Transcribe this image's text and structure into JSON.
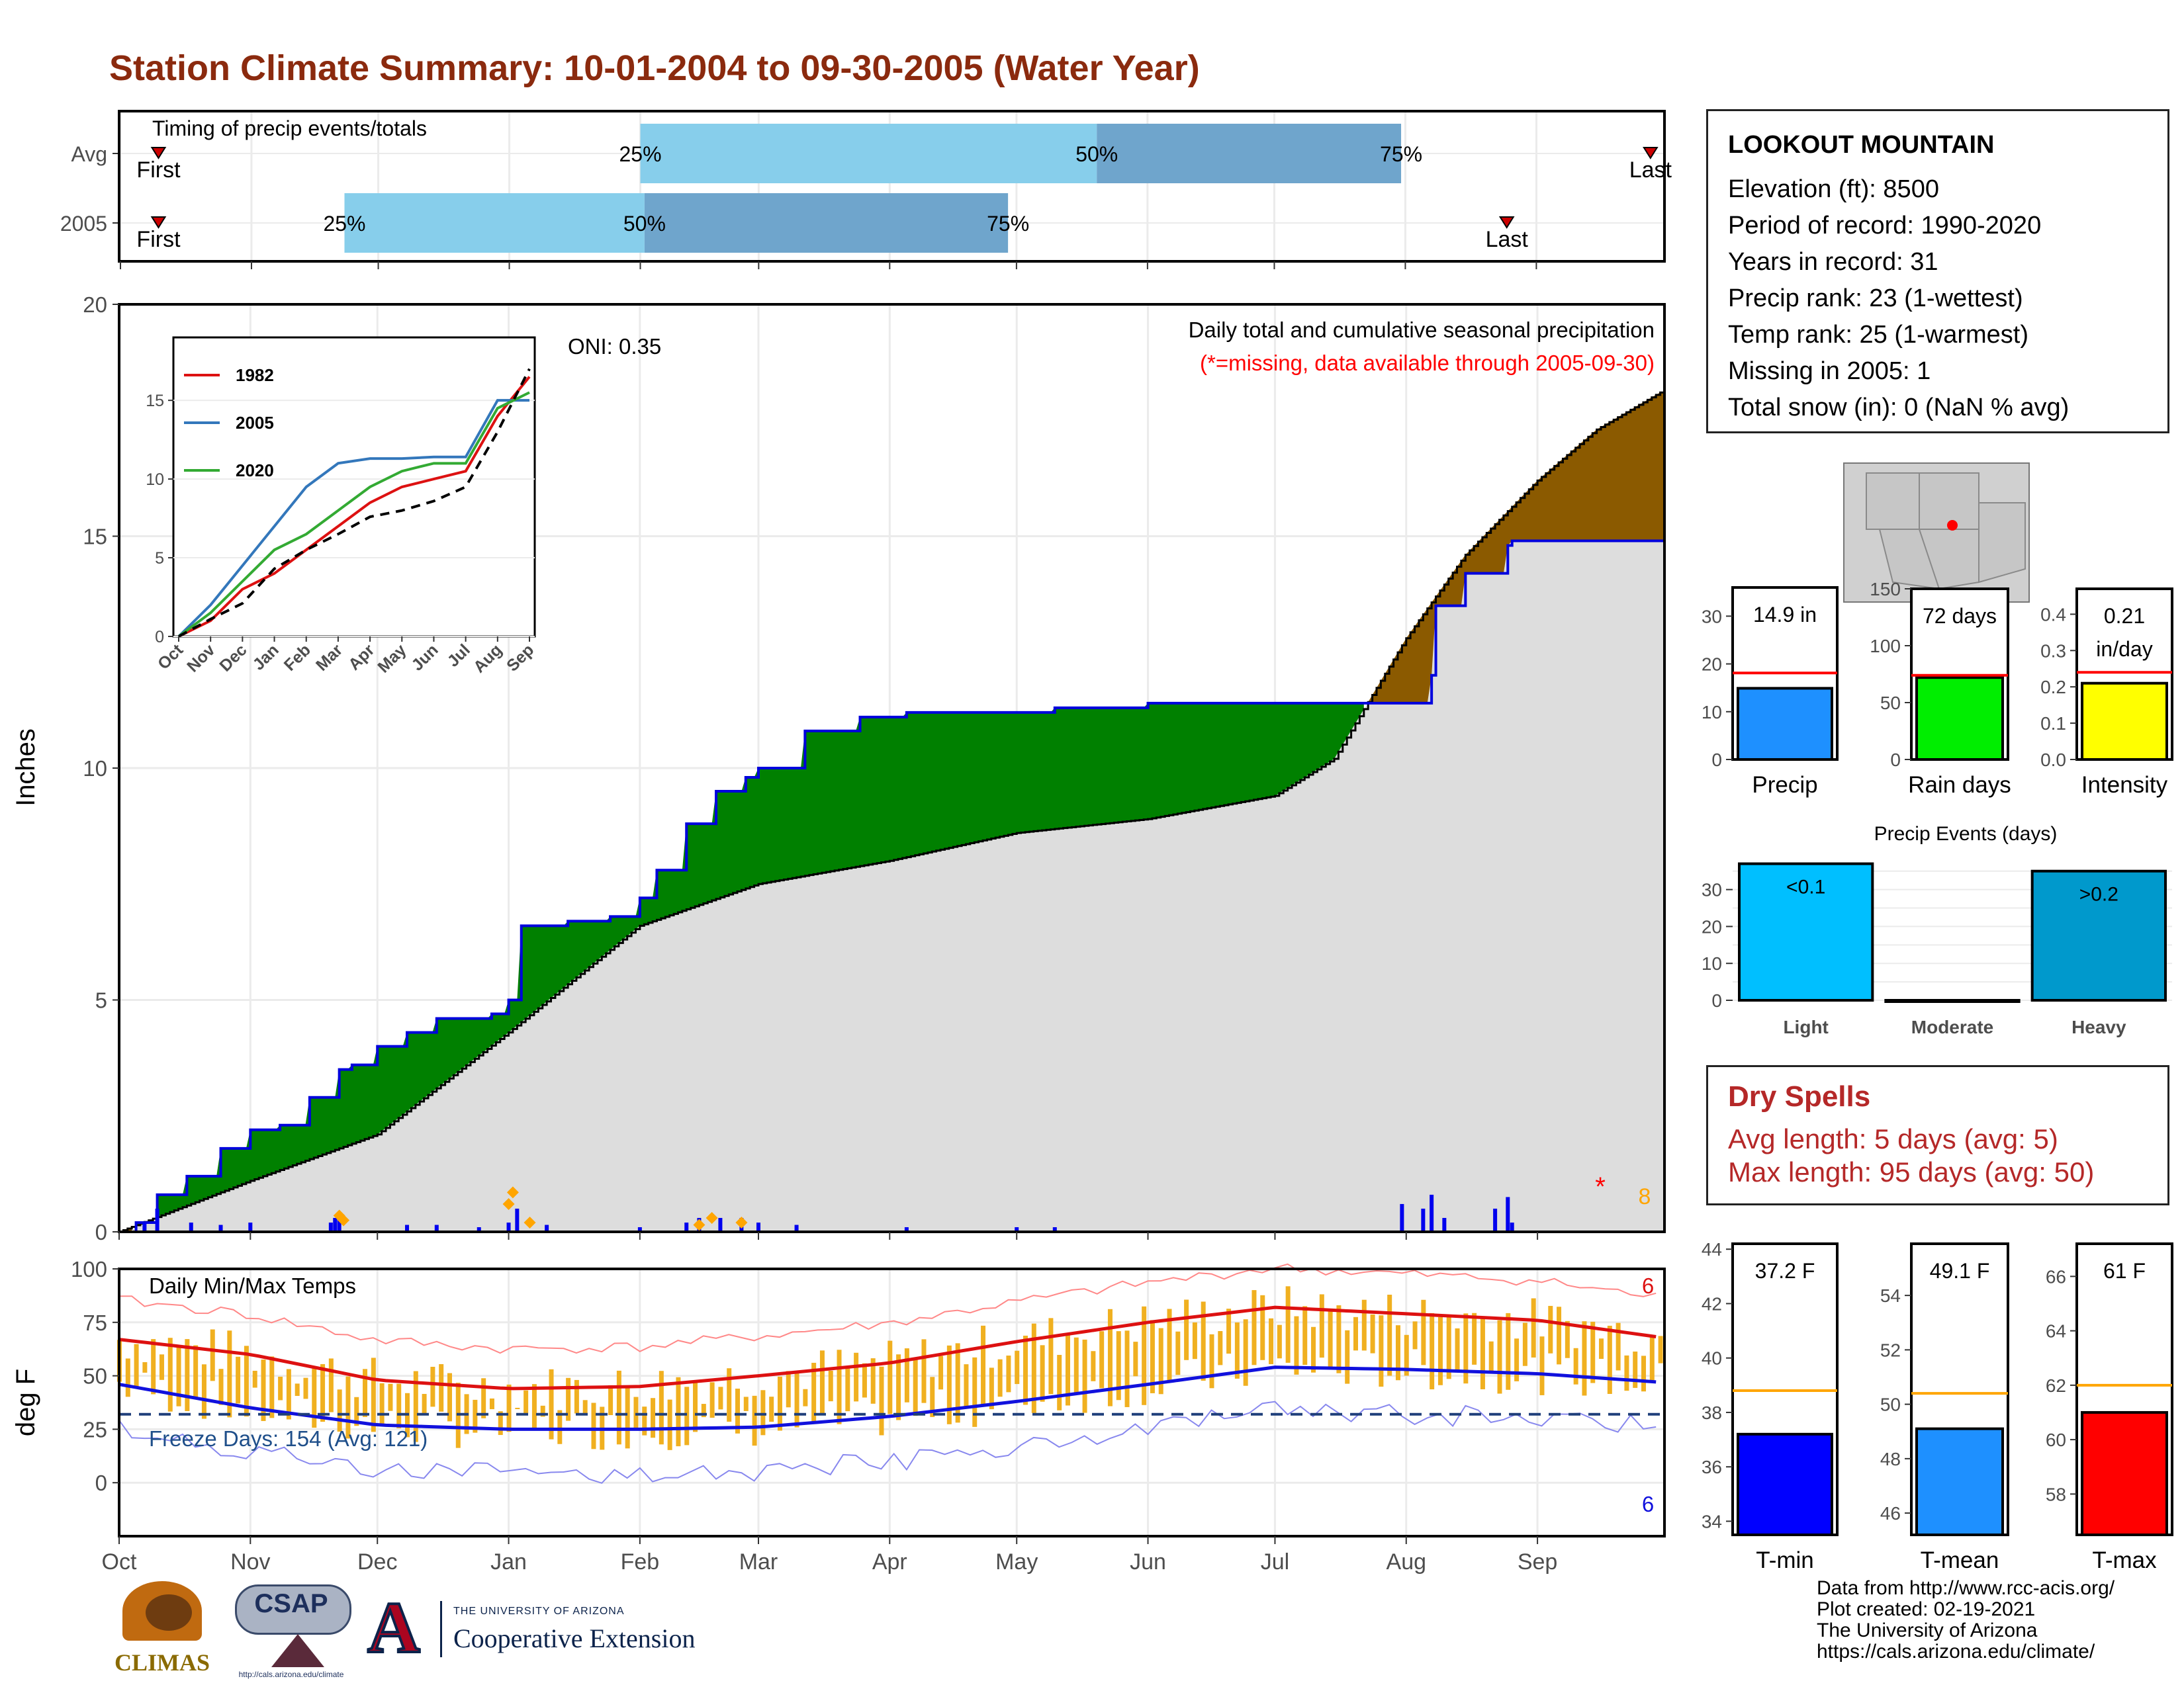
{
  "title": "Station Climate Summary: 10-01-2004 to 09-30-2005 (Water Year)",
  "station": {
    "name": "LOOKOUT MOUNTAIN",
    "lines": [
      "Elevation (ft): 8500",
      "Period of record: 1990-2020",
      "Years in record: 31",
      "Precip rank: 23 (1-wettest)",
      "Temp rank: 25 (1-warmest)",
      "Missing in 2005: 1",
      "Total snow (in): 0 (NaN % avg)"
    ]
  },
  "dry_spells": {
    "title": "Dry Spells",
    "avg_length": "Avg length: 5 days (avg: 5)",
    "max_length": "Max length: 95 days (avg: 50)"
  },
  "credits": [
    "Data from http://www.rcc-acis.org/",
    "Plot created: 02-19-2021",
    "The University of Arizona",
    "https://cals.arizona.edu/climate/"
  ],
  "logos": {
    "climas": "CLIMAS",
    "csap": "CSAP",
    "csap_url": "http://cals.arizona.edu/climate",
    "ua_small": "THE UNIVERSITY OF ARIZONA",
    "ua_big": "Cooperative Extension"
  },
  "chart_data": [
    {
      "type": "timeline",
      "title": "Timing of precip events/totals",
      "rows": [
        {
          "name": "Avg",
          "first": "2004-10-10",
          "q25": "2005-02-01",
          "q50": "2005-05-20",
          "q75": "2005-07-31",
          "last": "2005-09-28"
        },
        {
          "name": "2005",
          "first": "2004-10-10",
          "q25": "2004-11-23",
          "q50": "2005-02-02",
          "q75": "2005-04-29",
          "last": "2005-08-25"
        }
      ],
      "labels": {
        "first": "First",
        "last": "Last",
        "q25": "25%",
        "q50": "50%",
        "q75": "75%"
      },
      "colors": {
        "q25_q50": "#87ceeb",
        "q50_q75": "#6fa5cc",
        "marker": "#cc0000"
      }
    },
    {
      "type": "area",
      "title": "Daily total and cumulative seasonal precipitation",
      "subtitle": "(*=missing, data available through 2005-09-30)",
      "annotation": "ONI: 0.35",
      "ylabel": "Inches",
      "ylim": [
        0,
        20
      ],
      "yticks": [
        0,
        5,
        10,
        15,
        20
      ],
      "x_months": [
        "Oct",
        "Nov",
        "Dec",
        "Jan",
        "Feb",
        "Mar",
        "Apr",
        "May",
        "Jun",
        "Jul",
        "Aug",
        "Sep"
      ],
      "missing_count": "8",
      "colors": {
        "surplus": "#008000",
        "deficit": "#8b5a00",
        "normal": "#dddddd",
        "line": "#0000dd",
        "bars": "#0000ee",
        "snow": "#ffa500"
      },
      "cumulative_2005": {
        "x": [
          "2004-10-01",
          "2004-10-05",
          "2004-10-10",
          "2004-10-17",
          "2004-10-25",
          "2004-11-01",
          "2004-11-08",
          "2004-11-15",
          "2004-11-22",
          "2004-11-25",
          "2004-12-01",
          "2004-12-08",
          "2004-12-15",
          "2004-12-28",
          "2005-01-01",
          "2005-01-04",
          "2005-01-15",
          "2005-01-25",
          "2005-02-01",
          "2005-02-05",
          "2005-02-12",
          "2005-02-19",
          "2005-02-26",
          "2005-03-01",
          "2005-03-12",
          "2005-03-25",
          "2005-04-05",
          "2005-04-15",
          "2005-05-01",
          "2005-05-10",
          "2005-06-01",
          "2005-07-01",
          "2005-07-17",
          "2005-07-31",
          "2005-08-07",
          "2005-08-08",
          "2005-08-15",
          "2005-08-25",
          "2005-08-26",
          "2005-09-30"
        ],
        "y": [
          0,
          0.2,
          0.8,
          1.2,
          1.8,
          2.2,
          2.3,
          2.9,
          3.5,
          3.6,
          4.0,
          4.3,
          4.6,
          4.7,
          5.0,
          6.6,
          6.7,
          6.8,
          7.2,
          7.8,
          8.8,
          9.5,
          9.8,
          10.0,
          10.8,
          11.1,
          11.2,
          11.2,
          11.2,
          11.3,
          11.4,
          11.4,
          11.4,
          11.4,
          12.0,
          13.5,
          14.2,
          14.8,
          14.9,
          14.9
        ]
      },
      "cumulative_avg": {
        "x": [
          "2004-10-01",
          "2004-11-01",
          "2004-12-01",
          "2005-01-01",
          "2005-02-01",
          "2005-03-01",
          "2005-04-01",
          "2005-05-01",
          "2005-06-01",
          "2005-07-01",
          "2005-07-15",
          "2005-08-01",
          "2005-08-15",
          "2005-09-01",
          "2005-09-15",
          "2005-09-30"
        ],
        "y": [
          0,
          1.1,
          2.1,
          4.3,
          6.6,
          7.5,
          8.0,
          8.6,
          8.9,
          9.4,
          10.2,
          12.8,
          14.6,
          16.2,
          17.3,
          18.1
        ]
      },
      "daily_precip": {
        "x": [
          "2004-10-07",
          "2004-10-10",
          "2004-10-18",
          "2004-10-25",
          "2004-11-01",
          "2004-11-20",
          "2004-11-21",
          "2004-11-22",
          "2004-12-08",
          "2004-12-15",
          "2004-12-25",
          "2005-01-01",
          "2005-01-03",
          "2005-01-10",
          "2005-02-01",
          "2005-02-12",
          "2005-02-15",
          "2005-02-20",
          "2005-02-25",
          "2005-03-01",
          "2005-03-10",
          "2005-04-05",
          "2005-05-01",
          "2005-05-10",
          "2005-07-31",
          "2005-08-05",
          "2005-08-07",
          "2005-08-10",
          "2005-08-22",
          "2005-08-25",
          "2005-08-26"
        ],
        "y": [
          0.2,
          0.5,
          0.2,
          0.15,
          0.2,
          0.2,
          0.3,
          0.35,
          0.15,
          0.15,
          0.1,
          0.2,
          0.5,
          0.15,
          0.1,
          0.2,
          0.3,
          0.3,
          0.3,
          0.2,
          0.15,
          0.1,
          0.1,
          0.1,
          0.6,
          0.5,
          0.8,
          0.3,
          0.5,
          0.75,
          0.2
        ]
      },
      "snow_markers": {
        "x": [
          "2004-11-22",
          "2004-11-23",
          "2005-01-01",
          "2005-01-02",
          "2005-01-06",
          "2005-02-15",
          "2005-02-18",
          "2005-02-25"
        ],
        "y": [
          0.35,
          0.25,
          0.6,
          0.85,
          0.2,
          0.15,
          0.3,
          0.2
        ]
      },
      "inset": {
        "legend": [
          "1982",
          "2005",
          "2020"
        ],
        "colors": [
          "#dd1111",
          "#3377bb",
          "#33aa33"
        ],
        "yticks": [
          0,
          5,
          10,
          15
        ],
        "ylim": [
          0,
          19
        ],
        "x_months": [
          "Oct",
          "Nov",
          "Dec",
          "Jan",
          "Feb",
          "Mar",
          "Apr",
          "May",
          "Jun",
          "Jul",
          "Aug",
          "Sep"
        ],
        "series": [
          {
            "name": "1982",
            "y": [
              0,
              1,
              3,
              4,
              5.5,
              7,
              8.5,
              9.5,
              10,
              10.5,
              14,
              16.5
            ]
          },
          {
            "name": "2005",
            "y": [
              0,
              2,
              4.5,
              7,
              9.5,
              11,
              11.3,
              11.3,
              11.4,
              11.4,
              15,
              15
            ]
          },
          {
            "name": "2020",
            "y": [
              0,
              1.5,
              3.5,
              5.5,
              6.5,
              8,
              9.5,
              10.5,
              11,
              11,
              14.5,
              15.5
            ]
          },
          {
            "name": "avg",
            "y": [
              0,
              1.1,
              2.1,
              4.3,
              5.5,
              6.5,
              7.6,
              8,
              8.6,
              9.5,
              13,
              17
            ]
          }
        ]
      }
    },
    {
      "type": "line",
      "title": "Daily Min/Max Temps",
      "ylabel": "deg F",
      "ylim": [
        -25,
        100
      ],
      "yticks": [
        0,
        25,
        50,
        75,
        100
      ],
      "x_months": [
        "Oct",
        "Nov",
        "Dec",
        "Jan",
        "Feb",
        "Mar",
        "Apr",
        "May",
        "Jun",
        "Jul",
        "Aug",
        "Sep"
      ],
      "freeze_days": "Freeze Days: 154 (Avg: 121)",
      "freeze_line": 32,
      "record_high_count": "6",
      "record_low_count": "6",
      "series": [
        {
          "name": "avg_max",
          "x": [
            "2004-10-01",
            "2004-11-01",
            "2004-12-01",
            "2005-01-01",
            "2005-02-01",
            "2005-03-01",
            "2005-04-01",
            "2005-05-01",
            "2005-06-01",
            "2005-07-01",
            "2005-08-01",
            "2005-09-01",
            "2005-09-30"
          ],
          "y": [
            67,
            60,
            48,
            44,
            45,
            50,
            56,
            66,
            75,
            82,
            79,
            76,
            68
          ]
        },
        {
          "name": "avg_min",
          "x": [
            "2004-10-01",
            "2004-11-01",
            "2004-12-01",
            "2005-01-01",
            "2005-02-01",
            "2005-03-01",
            "2005-04-01",
            "2005-05-01",
            "2005-06-01",
            "2005-07-01",
            "2005-08-01",
            "2005-09-01",
            "2005-09-30"
          ],
          "y": [
            46,
            35,
            27,
            25,
            25,
            26,
            31,
            38,
            46,
            54,
            53,
            51,
            47
          ]
        }
      ],
      "colors": {
        "range": "#f0b020",
        "avg_max": "#dd1111",
        "avg_min": "#1111dd",
        "rec_max": "#ff8888",
        "rec_min": "#8888ee"
      }
    },
    {
      "type": "bar",
      "title": "Precip",
      "value_label": "14.9 in",
      "values": [
        14.9
      ],
      "avg": 18.1,
      "ylim": [
        0,
        36
      ],
      "yticks": [
        0,
        10,
        20,
        30
      ],
      "color": "#1e90ff"
    },
    {
      "type": "bar",
      "title": "Rain days",
      "value_label": "72 days",
      "values": [
        72
      ],
      "avg": 74,
      "ylim": [
        0,
        150
      ],
      "yticks": [
        0,
        50,
        100,
        150
      ],
      "color": "#00ee00"
    },
    {
      "type": "bar",
      "title": "Intensity",
      "value_label": "0.21",
      "value_label2": "in/day",
      "values": [
        0.21
      ],
      "avg": 0.24,
      "ylim": [
        0,
        0.47
      ],
      "yticks": [
        0.0,
        0.1,
        0.2,
        0.3,
        0.4
      ],
      "tick_labels": [
        "0.0",
        "0.1",
        "0.2",
        "0.3",
        "0.4"
      ],
      "color": "#ffff00"
    },
    {
      "type": "bar",
      "title": "Precip Events (days)",
      "categories": [
        "Light",
        "Moderate",
        "Heavy"
      ],
      "values": [
        37,
        0,
        35
      ],
      "bar_labels": [
        "<0.1",
        "",
        ">0.2"
      ],
      "ylim": [
        0,
        38
      ],
      "yticks": [
        0,
        10,
        20,
        30
      ],
      "colors": [
        "#00bfff",
        "#00bfff",
        "#0099cc"
      ]
    },
    {
      "type": "bar",
      "title": "T-min",
      "value_label": "37.2 F",
      "values": [
        37.2
      ],
      "avg": 38.8,
      "ylim": [
        33.5,
        44.2
      ],
      "yticks": [
        34,
        36,
        38,
        40,
        42,
        44
      ],
      "color": "#0000ff"
    },
    {
      "type": "bar",
      "title": "T-mean",
      "value_label": "49.1 F",
      "values": [
        49.1
      ],
      "avg": 50.4,
      "ylim": [
        45.2,
        55.9
      ],
      "yticks": [
        46,
        48,
        50,
        52,
        54
      ],
      "color": "#1e90ff"
    },
    {
      "type": "bar",
      "title": "T-max",
      "value_label": "61 F",
      "values": [
        61
      ],
      "avg": 62,
      "ylim": [
        56.5,
        67.2
      ],
      "yticks": [
        58,
        60,
        62,
        64,
        66
      ],
      "color": "#ff0000"
    }
  ]
}
